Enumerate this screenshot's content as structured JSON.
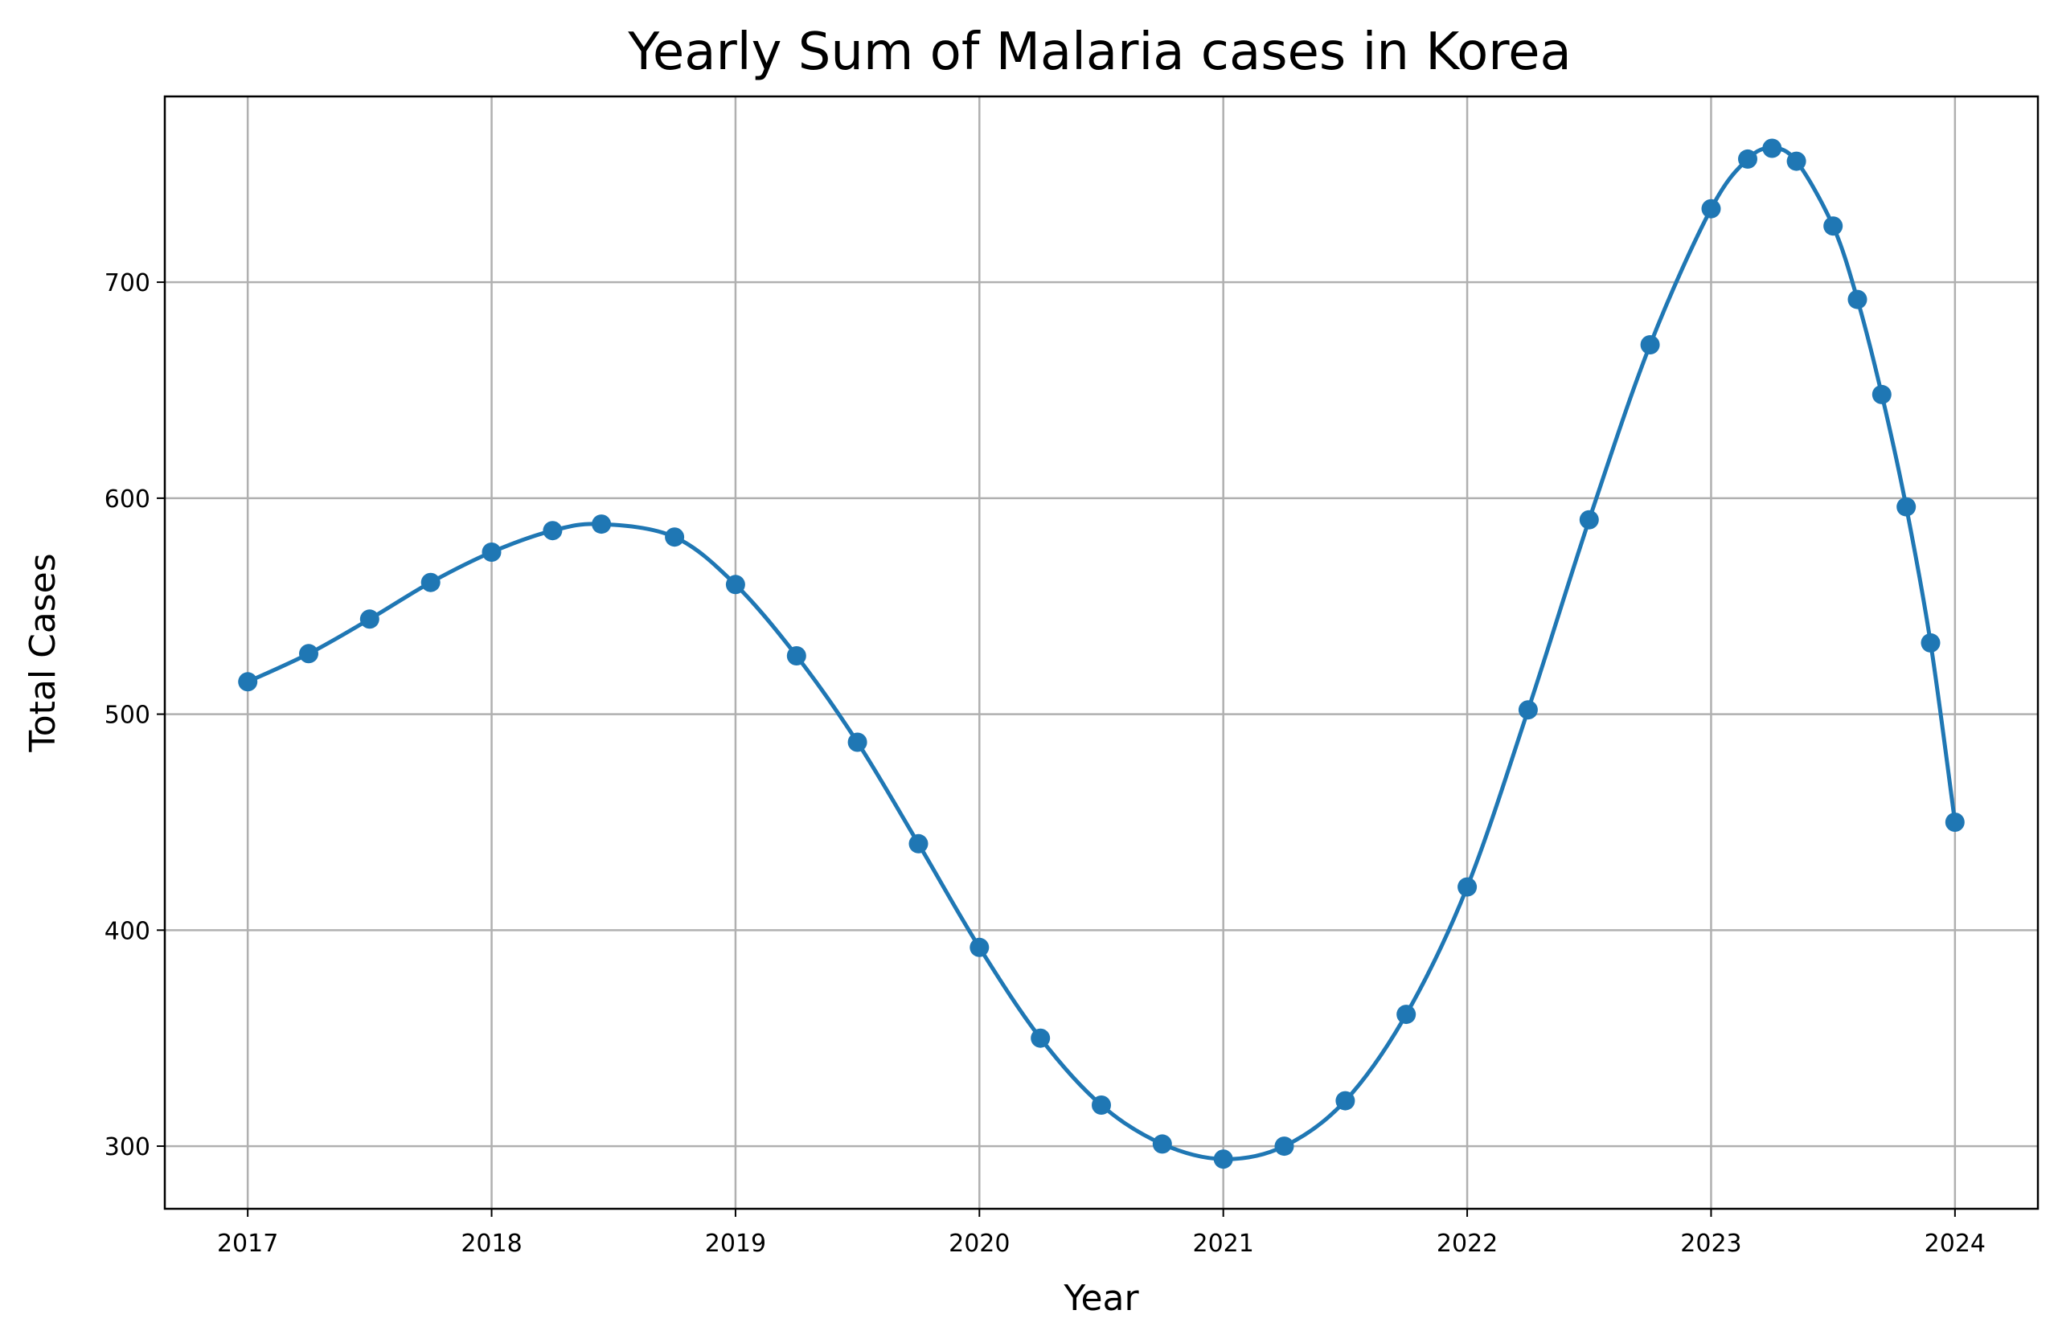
{
  "chart_data": {
    "type": "line",
    "title": "Yearly Sum of Malaria cases in Korea",
    "xlabel": "Year",
    "ylabel": "Total Cases",
    "xlim": [
      2016.66,
      2024.34
    ],
    "ylim": [
      271,
      786
    ],
    "x_ticks": [
      2017,
      2018,
      2019,
      2020,
      2021,
      2022,
      2023,
      2024
    ],
    "x_tick_labels": [
      "2017",
      "2018",
      "2019",
      "2020",
      "2021",
      "2022",
      "2023",
      "2024"
    ],
    "y_ticks": [
      300,
      400,
      500,
      600,
      700
    ],
    "y_tick_labels": [
      "300",
      "400",
      "500",
      "600",
      "700"
    ],
    "grid": true,
    "marker": "circle",
    "series": [
      {
        "color": "#1f77b4",
        "x": [
          2017.0,
          2017.25,
          2017.5,
          2017.75,
          2018.0,
          2018.25,
          2018.45,
          2018.75,
          2019.0,
          2019.25,
          2019.5,
          2019.75,
          2020.0,
          2020.25,
          2020.5,
          2020.75,
          2021.0,
          2021.25,
          2021.5,
          2021.75,
          2022.0,
          2022.25,
          2022.5,
          2022.75,
          2023.0,
          2023.15,
          2023.25,
          2023.35,
          2023.5,
          2023.6,
          2023.7,
          2023.8,
          2023.9,
          2024.0
        ],
        "y": [
          515,
          528,
          544,
          561,
          575,
          585,
          588,
          582,
          560,
          527,
          487,
          440,
          392,
          350,
          319,
          301,
          294,
          300,
          321,
          361,
          420,
          502,
          590,
          671,
          734,
          757,
          762,
          756,
          726,
          692,
          648,
          596,
          533,
          450
        ]
      }
    ]
  }
}
